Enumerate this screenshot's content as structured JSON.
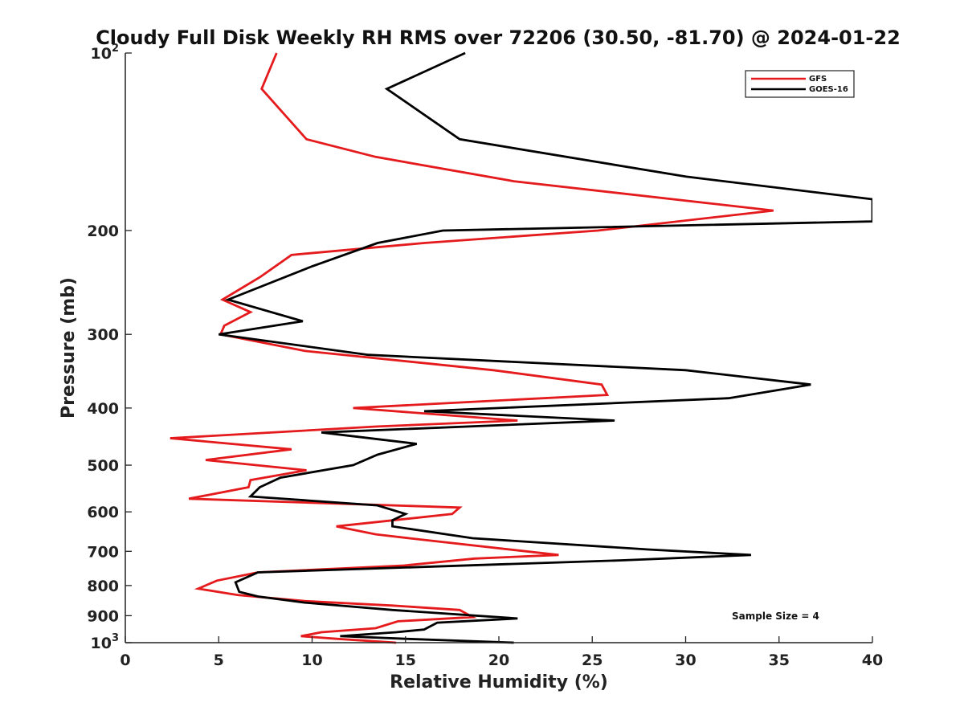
{
  "chart_data": {
    "type": "line",
    "title": "Cloudy Full Disk Weekly RH RMS over 72206 (30.50, -81.70) @ 2024-01-22",
    "xlabel": "Relative Humidity (%)",
    "ylabel": "Pressure (mb)",
    "xlim": [
      0,
      40
    ],
    "ylim": [
      1000,
      100
    ],
    "y_scale": "log",
    "x_ticks": [
      "0",
      "5",
      "10",
      "15",
      "20",
      "25",
      "30",
      "35",
      "40"
    ],
    "y_ticks": [
      {
        "value": 100,
        "base": "10",
        "exp": "2"
      },
      {
        "value": 200,
        "label": "200"
      },
      {
        "value": 300,
        "label": "300"
      },
      {
        "value": 400,
        "label": "400"
      },
      {
        "value": 500,
        "label": "500"
      },
      {
        "value": 600,
        "label": "600"
      },
      {
        "value": 700,
        "label": "700"
      },
      {
        "value": 800,
        "label": "800"
      },
      {
        "value": 900,
        "label": "900"
      },
      {
        "value": 1000,
        "base": "10",
        "exp": "3"
      }
    ],
    "legend": {
      "position": "top-right"
    },
    "annotation": "Sample Size = 4",
    "series": [
      {
        "name": "GFS",
        "color": "#e41a1c",
        "points": [
          [
            8.1,
            100
          ],
          [
            7.3,
            115
          ],
          [
            9.7,
            140
          ],
          [
            13.4,
            150
          ],
          [
            20.8,
            165
          ],
          [
            34.7,
            185
          ],
          [
            25.3,
            200
          ],
          [
            16.0,
            210
          ],
          [
            8.9,
            220
          ],
          [
            7.2,
            240
          ],
          [
            5.2,
            262
          ],
          [
            6.7,
            275
          ],
          [
            5.3,
            290
          ],
          [
            5.1,
            300
          ],
          [
            9.6,
            320
          ],
          [
            19.7,
            345
          ],
          [
            25.5,
            365
          ],
          [
            25.8,
            380
          ],
          [
            12.2,
            400
          ],
          [
            21.0,
            420
          ],
          [
            13.4,
            430
          ],
          [
            2.4,
            450
          ],
          [
            8.9,
            470
          ],
          [
            4.3,
            490
          ],
          [
            9.7,
            510
          ],
          [
            6.7,
            530
          ],
          [
            6.6,
            545
          ],
          [
            3.4,
            570
          ],
          [
            17.9,
            590
          ],
          [
            17.5,
            605
          ],
          [
            11.3,
            635
          ],
          [
            13.4,
            655
          ],
          [
            15.2,
            665
          ],
          [
            23.2,
            710
          ],
          [
            18.7,
            720
          ],
          [
            14.9,
            740
          ],
          [
            7.1,
            760
          ],
          [
            4.9,
            785
          ],
          [
            3.9,
            810
          ],
          [
            6.0,
            830
          ],
          [
            9.6,
            850
          ],
          [
            14.3,
            865
          ],
          [
            17.9,
            880
          ],
          [
            18.6,
            905
          ],
          [
            14.6,
            920
          ],
          [
            13.4,
            945
          ],
          [
            10.5,
            960
          ],
          [
            9.4,
            975
          ],
          [
            11.3,
            985
          ],
          [
            14.5,
            1000
          ]
        ]
      },
      {
        "name": "GOES-16",
        "color": "#000000",
        "points": [
          [
            18.2,
            100
          ],
          [
            14.0,
            115
          ],
          [
            17.9,
            140
          ],
          [
            30.0,
            162
          ],
          [
            40.0,
            177
          ],
          [
            40.0,
            193
          ],
          [
            17.0,
            200
          ],
          [
            13.5,
            210
          ],
          [
            10.0,
            230
          ],
          [
            5.5,
            262
          ],
          [
            9.5,
            285
          ],
          [
            5.0,
            300
          ],
          [
            13.0,
            325
          ],
          [
            30.0,
            345
          ],
          [
            36.7,
            365
          ],
          [
            32.3,
            385
          ],
          [
            16.0,
            405
          ],
          [
            26.2,
            420
          ],
          [
            10.5,
            440
          ],
          [
            15.6,
            460
          ],
          [
            13.5,
            480
          ],
          [
            12.2,
            500
          ],
          [
            8.3,
            525
          ],
          [
            7.2,
            545
          ],
          [
            6.7,
            565
          ],
          [
            13.5,
            585
          ],
          [
            15.0,
            605
          ],
          [
            14.3,
            620
          ],
          [
            14.3,
            635
          ],
          [
            18.6,
            665
          ],
          [
            28.0,
            695
          ],
          [
            33.5,
            710
          ],
          [
            26.6,
            725
          ],
          [
            7.1,
            760
          ],
          [
            5.9,
            790
          ],
          [
            6.1,
            820
          ],
          [
            7.1,
            835
          ],
          [
            9.6,
            855
          ],
          [
            14.3,
            880
          ],
          [
            21.0,
            910
          ],
          [
            16.7,
            925
          ],
          [
            16.0,
            950
          ],
          [
            14.5,
            960
          ],
          [
            11.5,
            975
          ],
          [
            15.0,
            985
          ],
          [
            20.8,
            1000
          ]
        ]
      }
    ]
  }
}
